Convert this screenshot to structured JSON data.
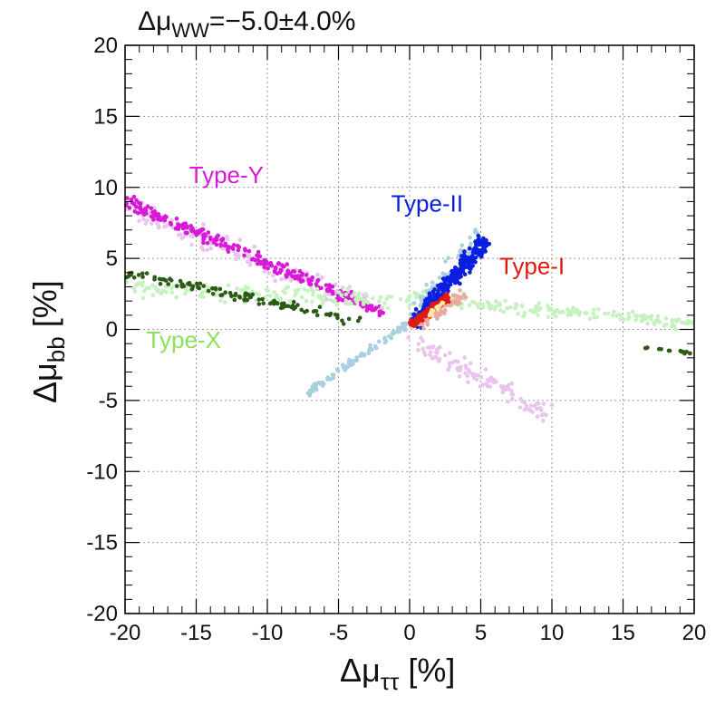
{
  "chart_data": {
    "type": "scatter",
    "title_prefix": "Δμ",
    "title_sub": "WW",
    "title_value": "=−5.0±4.0%",
    "xlabel_prefix": "Δμ",
    "xlabel_sub": "ττ",
    "xlabel_suffix": " [%]",
    "ylabel_prefix": "Δμ",
    "ylabel_sub": "bb",
    "ylabel_suffix": " [%]",
    "xlim": [
      -20,
      20
    ],
    "ylim": [
      -20,
      20
    ],
    "grid": true,
    "x_ticks": [
      -20,
      -15,
      -10,
      -5,
      0,
      5,
      10,
      15,
      20
    ],
    "y_ticks": [
      -20,
      -15,
      -10,
      -5,
      0,
      5,
      10,
      15,
      20
    ],
    "x_tick_labels": [
      "-20",
      "-15",
      "-10",
      "-5",
      "0",
      "5",
      "10",
      "15",
      "20"
    ],
    "y_tick_labels": [
      "-20",
      "-15",
      "-10",
      "-5",
      "0",
      "5",
      "10",
      "15",
      "20"
    ],
    "series": [
      {
        "name": "Type-Y (light)",
        "color": "#ebc3ef",
        "segments": [
          {
            "x": [
              -20,
              -3
            ],
            "y": [
              8.6,
              1.8
            ],
            "spread": 1.1,
            "n": 170
          },
          {
            "x": [
              -0.5,
              9.8
            ],
            "y": [
              -0.4,
              -6.0
            ],
            "spread": 0.9,
            "n": 110
          }
        ]
      },
      {
        "name": "Type-Y",
        "color": "#d81ad8",
        "segments": [
          {
            "x": [
              -20,
              -1.5
            ],
            "y": [
              9.0,
              1.0
            ],
            "spread": 0.6,
            "n": 260
          }
        ]
      },
      {
        "name": "Type-X (light)",
        "color": "#c6f2c0",
        "segments": [
          {
            "x": [
              -20,
              0
            ],
            "y": [
              3.0,
              1.9
            ],
            "spread": 0.9,
            "n": 150
          },
          {
            "x": [
              0,
              20
            ],
            "y": [
              2.3,
              0.3
            ],
            "spread": 0.7,
            "n": 190
          }
        ]
      },
      {
        "name": "Type-X",
        "color": "#2d5a16",
        "segments": [
          {
            "x": [
              -20,
              -3.5
            ],
            "y": [
              4.0,
              0.6
            ],
            "spread": 0.5,
            "n": 110
          },
          {
            "x": [
              16,
              20
            ],
            "y": [
              -1.2,
              -1.7
            ],
            "spread": 0.15,
            "n": 14
          }
        ]
      },
      {
        "name": "Type-II (light)",
        "color": "#a9cfe0",
        "segments": [
          {
            "x": [
              -7.2,
              0
            ],
            "y": [
              -4.5,
              0.5
            ],
            "spread": 0.35,
            "n": 90
          },
          {
            "x": [
              0,
              5.2
            ],
            "y": [
              0.5,
              6.8
            ],
            "spread": 0.9,
            "n": 130
          }
        ]
      },
      {
        "name": "Type-II",
        "color": "#0a1fe0",
        "segments": [
          {
            "x": [
              0.2,
              5.4
            ],
            "y": [
              0.4,
              6.3
            ],
            "spread": 0.8,
            "n": 300
          }
        ]
      },
      {
        "name": "Type-I (light)",
        "color": "#e9aaa2",
        "segments": [
          {
            "x": [
              0.5,
              3.8
            ],
            "y": [
              0.3,
              2.5
            ],
            "spread": 0.6,
            "n": 80
          }
        ]
      },
      {
        "name": "Type-I",
        "color": "#e01a10",
        "segments": [
          {
            "x": [
              0.1,
              2.8
            ],
            "y": [
              0.3,
              2.4
            ],
            "spread": 0.4,
            "n": 120
          }
        ]
      },
      {
        "name": "Type-I (inner)",
        "color": "#fbe9a3",
        "segments": [
          {
            "x": [
              1.3,
              2.4
            ],
            "y": [
              1.0,
              1.9
            ],
            "spread": 0.2,
            "n": 14
          }
        ]
      }
    ],
    "labels": [
      {
        "text": "Type-Y",
        "color": "#d81ad8",
        "x": -15.5,
        "y": 10.3
      },
      {
        "text": "Type-II",
        "color": "#0a1fe0",
        "x": -1.3,
        "y": 8.3
      },
      {
        "text": "Type-I",
        "color": "#e01a10",
        "x": 6.3,
        "y": 3.9
      },
      {
        "text": "Type-X",
        "color": "#8de05a",
        "x": -18.5,
        "y": -1.3
      }
    ]
  }
}
